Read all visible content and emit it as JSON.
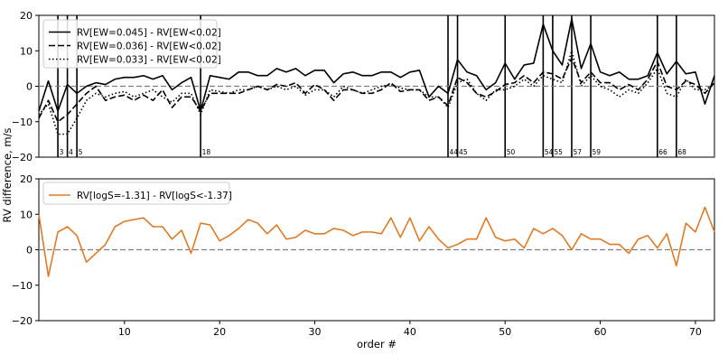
{
  "chart_data": [
    {
      "type": "line",
      "panel": "top",
      "xlim": [
        1,
        72
      ],
      "ylim": [
        -20,
        20
      ],
      "yticks": [
        "−20",
        "−10",
        "0",
        "10",
        "20"
      ],
      "zero_line": {
        "value": 0,
        "style": "dashed",
        "color": "#7f7f7f"
      },
      "legend_position": "upper-left",
      "series": [
        {
          "name": "RV[EW=0.045] - RV[EW<0.02]",
          "style": "solid",
          "color": "#000000",
          "x": [
            1,
            2,
            3,
            4,
            5,
            6,
            7,
            8,
            9,
            10,
            11,
            12,
            13,
            14,
            15,
            16,
            17,
            18,
            19,
            20,
            21,
            22,
            23,
            24,
            25,
            26,
            27,
            28,
            29,
            30,
            31,
            32,
            33,
            34,
            35,
            36,
            37,
            38,
            39,
            40,
            41,
            42,
            43,
            44,
            45,
            46,
            47,
            48,
            49,
            50,
            51,
            52,
            53,
            54,
            55,
            56,
            57,
            58,
            59,
            60,
            61,
            62,
            63,
            64,
            65,
            66,
            67,
            68,
            69,
            70,
            71,
            72
          ],
          "values": [
            -7,
            1.5,
            -7,
            0.5,
            -2,
            0,
            1,
            0.5,
            2,
            2.5,
            2.5,
            3,
            2,
            3,
            -1,
            1,
            2.5,
            -7,
            3,
            2.5,
            2,
            4,
            4,
            3,
            3,
            5,
            4,
            5,
            3,
            4.5,
            4.5,
            1,
            3.5,
            4,
            3,
            3,
            4,
            4,
            2.5,
            4,
            4.5,
            -3,
            0,
            -2,
            7.5,
            4,
            3,
            -1,
            1,
            6.5,
            2,
            6,
            6.5,
            17.5,
            10,
            6,
            19,
            5,
            12,
            4,
            3,
            4,
            2,
            2,
            3,
            9.5,
            3.5,
            7,
            3.5,
            4,
            -5,
            3
          ]
        },
        {
          "name": "RV[EW=0.036] - RV[EW<0.02]",
          "style": "dashed",
          "color": "#000000",
          "x": [
            1,
            2,
            3,
            4,
            5,
            6,
            7,
            8,
            9,
            10,
            11,
            12,
            13,
            14,
            15,
            16,
            17,
            18,
            19,
            20,
            21,
            22,
            23,
            24,
            25,
            26,
            27,
            28,
            29,
            30,
            31,
            32,
            33,
            34,
            35,
            36,
            37,
            38,
            39,
            40,
            41,
            42,
            43,
            44,
            45,
            46,
            47,
            48,
            49,
            50,
            51,
            52,
            53,
            54,
            55,
            56,
            57,
            58,
            59,
            60,
            61,
            62,
            63,
            64,
            65,
            66,
            67,
            68,
            69,
            70,
            71,
            72
          ],
          "values": [
            -9,
            -4,
            -10,
            -8,
            -5,
            -2,
            0,
            -4,
            -3,
            -2.5,
            -4,
            -2.5,
            -4,
            -1,
            -6,
            -3,
            -3,
            -7,
            -2,
            -2,
            -2,
            -2,
            -1,
            0,
            -1,
            0.5,
            0,
            1,
            -2,
            0.5,
            -1,
            -4,
            -1,
            -1,
            -2,
            -2,
            -1,
            1,
            -1.5,
            -1,
            -1,
            -4,
            -3,
            -5.5,
            2.5,
            1,
            -2,
            -3,
            -1.5,
            0.5,
            1,
            3,
            1,
            4,
            3.5,
            2,
            8,
            1,
            4,
            1,
            1,
            -1,
            0.5,
            -1,
            2,
            7,
            0,
            -1,
            1.5,
            0.5,
            -2,
            1
          ]
        },
        {
          "name": "RV[EW=0.033] - RV[EW<0.02]",
          "style": "dotted",
          "color": "#000000",
          "x": [
            1,
            2,
            3,
            4,
            5,
            6,
            7,
            8,
            9,
            10,
            11,
            12,
            13,
            14,
            15,
            16,
            17,
            18,
            19,
            20,
            21,
            22,
            23,
            24,
            25,
            26,
            27,
            28,
            29,
            30,
            31,
            32,
            33,
            34,
            35,
            36,
            37,
            38,
            39,
            40,
            41,
            42,
            43,
            44,
            45,
            46,
            47,
            48,
            49,
            50,
            51,
            52,
            53,
            54,
            55,
            56,
            57,
            58,
            59,
            60,
            61,
            62,
            63,
            64,
            65,
            66,
            67,
            68,
            69,
            70,
            71,
            72
          ],
          "values": [
            -8,
            -5,
            -13.5,
            -13.5,
            -9,
            -4,
            -2,
            -3,
            -2,
            -1.5,
            -3,
            -2,
            -1,
            -3,
            -4.5,
            -2,
            -2,
            -8,
            -1,
            -1.5,
            -2,
            -1,
            -1,
            0,
            -1,
            0,
            -1,
            0,
            -2.5,
            -1,
            -1,
            -3,
            0,
            -1,
            -2,
            -1,
            0,
            0.5,
            -0.5,
            -1,
            -1,
            -3,
            -3,
            -6,
            1,
            2,
            -2,
            -4,
            -1,
            -1,
            0,
            2,
            0,
            3,
            2,
            1,
            10,
            0,
            3,
            0,
            -1,
            -3,
            -1,
            -2,
            1,
            5,
            -2,
            -3,
            2,
            -1,
            -1,
            0.5
          ]
        }
      ],
      "vlines": [
        {
          "x": 3,
          "label": "3"
        },
        {
          "x": 4,
          "label": "4"
        },
        {
          "x": 5,
          "label": "5"
        },
        {
          "x": 18,
          "label": "18"
        },
        {
          "x": 44,
          "label": "44"
        },
        {
          "x": 45,
          "label": "45"
        },
        {
          "x": 50,
          "label": "50"
        },
        {
          "x": 54,
          "label": "54"
        },
        {
          "x": 55,
          "label": "55"
        },
        {
          "x": 57,
          "label": "57"
        },
        {
          "x": 59,
          "label": "59"
        },
        {
          "x": 66,
          "label": "66"
        },
        {
          "x": 68,
          "label": "68"
        }
      ]
    },
    {
      "type": "line",
      "panel": "bottom",
      "xlim": [
        1,
        72
      ],
      "ylim": [
        -20,
        20
      ],
      "xlabel": "order #",
      "xticks": [
        "10",
        "20",
        "30",
        "40",
        "50",
        "60",
        "70"
      ],
      "yticks": [
        "−20",
        "−10",
        "0",
        "10",
        "20"
      ],
      "zero_line": {
        "value": 0,
        "style": "dashed",
        "color": "#7f7f7f"
      },
      "legend_position": "upper-left",
      "series": [
        {
          "name": "RV[logS=-1.31] - RV[logS<-1.37]",
          "style": "solid",
          "color": "#e07b24",
          "x": [
            1,
            2,
            3,
            4,
            5,
            6,
            7,
            8,
            9,
            10,
            11,
            12,
            13,
            14,
            15,
            16,
            17,
            18,
            19,
            20,
            21,
            22,
            23,
            24,
            25,
            26,
            27,
            28,
            29,
            30,
            31,
            32,
            33,
            34,
            35,
            36,
            37,
            38,
            39,
            40,
            41,
            42,
            43,
            44,
            45,
            46,
            47,
            48,
            49,
            50,
            51,
            52,
            53,
            54,
            55,
            56,
            57,
            58,
            59,
            60,
            61,
            62,
            63,
            64,
            65,
            66,
            67,
            68,
            69,
            70,
            71,
            72
          ],
          "values": [
            10,
            -7.5,
            5,
            6.5,
            4,
            -3.5,
            -1,
            1.5,
            6.5,
            8,
            8.5,
            9,
            6.5,
            6.5,
            3,
            5.5,
            -1,
            7.5,
            7,
            2.5,
            4,
            6,
            8.5,
            7.5,
            4.5,
            7,
            3,
            3.5,
            5.5,
            4.5,
            4.5,
            6,
            5.5,
            4,
            5,
            5,
            4.5,
            9,
            3.5,
            9,
            2.5,
            6.5,
            3,
            0.5,
            1.5,
            3,
            3,
            9,
            3.5,
            2.5,
            3,
            0.5,
            6,
            4.5,
            6,
            4,
            0,
            4.5,
            3,
            3,
            1.5,
            1.5,
            -1,
            3,
            4,
            0.5,
            4.5,
            -4.5,
            7.5,
            5,
            12,
            5
          ]
        }
      ]
    }
  ],
  "figure": {
    "ylabel": "RV difference, m/s"
  }
}
